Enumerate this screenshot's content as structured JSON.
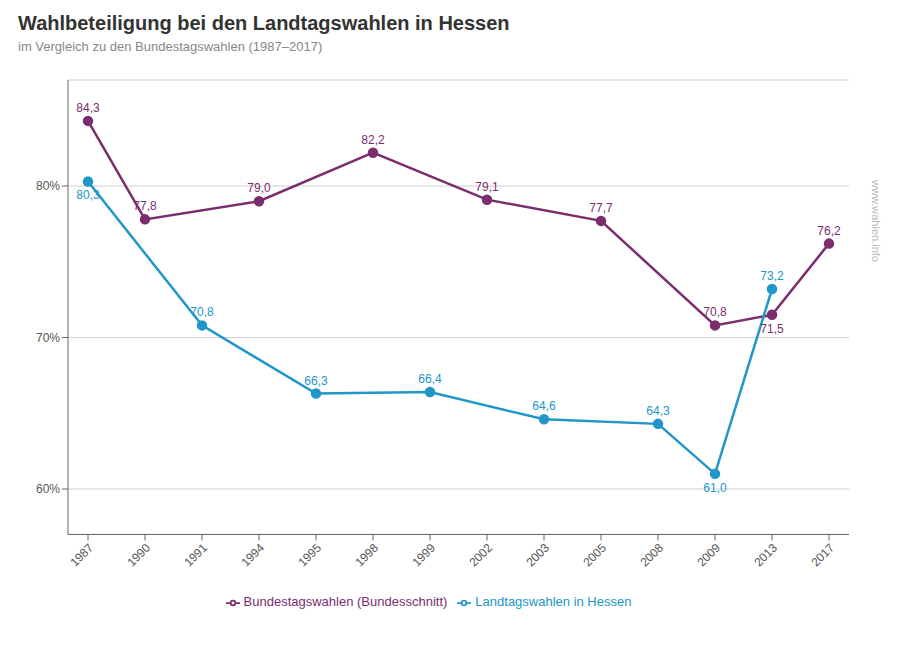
{
  "chart_data": {
    "type": "line",
    "title": "Wahlbeteiligung bei den Landtagswahlen in Hessen",
    "subtitle": "im Vergleich zu den Bundestagswahlen (1987–2017)",
    "annotations": [
      "www.wahlen.info"
    ],
    "categories": [
      "1987",
      "1990",
      "1991",
      "1994",
      "1995",
      "1998",
      "1999",
      "2002",
      "2003",
      "2005",
      "2008",
      "2009",
      "2013",
      "2017"
    ],
    "series": [
      {
        "name": "Bundestagswahlen (Bundesschnitt)",
        "color": "#7B2D6E",
        "marker": "circle",
        "values": [
          84.3,
          77.8,
          null,
          79.0,
          null,
          82.2,
          null,
          79.1,
          null,
          77.7,
          null,
          70.8,
          71.5,
          76.2
        ],
        "value_labels": [
          "84,3",
          "77,8",
          null,
          "79,0",
          null,
          "82,2",
          null,
          "79,1",
          null,
          "77,7",
          null,
          "70,8",
          "71,5",
          "76,2"
        ]
      },
      {
        "name": "Landtagswahlen in Hessen",
        "color": "#2196C8",
        "marker": "circle",
        "values": [
          80.3,
          null,
          70.8,
          null,
          66.3,
          null,
          66.4,
          null,
          64.6,
          null,
          64.3,
          61.0,
          73.2,
          null
        ],
        "value_labels": [
          "80,3",
          null,
          "70,8",
          null,
          "66,3",
          null,
          "66,4",
          null,
          "64,6",
          null,
          "64,3",
          "61,0",
          "73,2",
          null
        ]
      }
    ],
    "ylim": [
      57,
      87
    ],
    "yticks": [
      {
        "value": 60,
        "label": "60%"
      },
      {
        "value": 70,
        "label": "70%"
      },
      {
        "value": 80,
        "label": "80%"
      }
    ],
    "grid": true,
    "legend": "bottom",
    "data_labels": true
  }
}
